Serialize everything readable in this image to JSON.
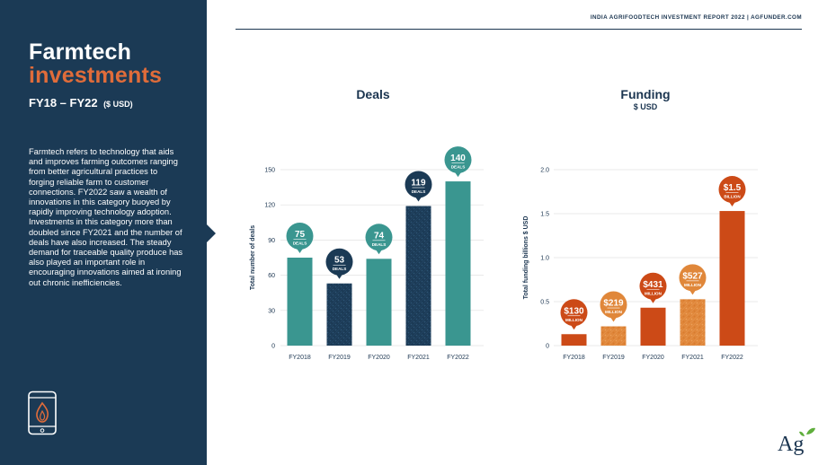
{
  "report_header": "INDIA AGRIFOODTECH INVESTMENT REPORT 2022 | AGFUNDER.COM",
  "sidebar": {
    "title_line1": "Farmtech",
    "title_line2": "investments",
    "years": "FY18 – FY22",
    "currency": "($ USD)",
    "description": "Farmtech refers to technology that aids and improves farming outcomes ranging from better agricultural practices to forging reliable farm to customer connections. FY2022 saw a wealth of innovations in this category buoyed by rapidly improving technology adoption. Investments in this category more than doubled since FY2021 and the number of deals have also increased. The steady demand for traceable quality produce has also played an important role in encouraging innovations aimed at ironing out chronic inefficiencies."
  },
  "brand": {
    "logo_text": "Ag"
  },
  "colors": {
    "navy": "#1b3a55",
    "teal": "#3a9690",
    "orange_dark": "#cc4a17",
    "orange_light": "#e0873a",
    "brand_orange": "#e06c3a",
    "leaf_green": "#5fae3c"
  },
  "chart_data": [
    {
      "type": "bar",
      "title": "Deals",
      "subtitle": "",
      "xlabel": "",
      "ylabel": "Total number of deals",
      "categories": [
        "FY2018",
        "FY2019",
        "FY2020",
        "FY2021",
        "FY2022"
      ],
      "values": [
        75,
        53,
        74,
        119,
        140
      ],
      "ylim": [
        0,
        150
      ],
      "yticks": [
        0,
        30,
        60,
        90,
        120,
        150
      ],
      "ytick_labels": [
        "0",
        "30",
        "60",
        "90",
        "120",
        "150"
      ],
      "bar_colors": [
        "#3a9690",
        "#1b3a55",
        "#3a9690",
        "#1b3a55",
        "#3a9690"
      ],
      "patterned": [
        false,
        true,
        false,
        true,
        false
      ],
      "data_labels": [
        {
          "value": "75",
          "unit": "DEALS"
        },
        {
          "value": "53",
          "unit": "DEALS"
        },
        {
          "value": "74",
          "unit": "DEALS"
        },
        {
          "value": "119",
          "unit": "DEALS"
        },
        {
          "value": "140",
          "unit": "DEALS"
        }
      ],
      "grid": true
    },
    {
      "type": "bar",
      "title": "Funding",
      "subtitle": "$ USD",
      "xlabel": "",
      "ylabel": "Total funding billions $ USD",
      "categories": [
        "FY2018",
        "FY2019",
        "FY2020",
        "FY2021",
        "FY2022"
      ],
      "values": [
        0.13,
        0.219,
        0.431,
        0.527,
        1.53
      ],
      "ylim": [
        0,
        2.0
      ],
      "yticks": [
        0,
        0.5,
        1.0,
        1.5,
        2.0
      ],
      "ytick_labels": [
        "0",
        "0.5",
        "1.0",
        "1.5",
        "2.0"
      ],
      "bar_colors": [
        "#cc4a17",
        "#e0873a",
        "#cc4a17",
        "#e0873a",
        "#cc4a17"
      ],
      "patterned": [
        false,
        true,
        false,
        true,
        false
      ],
      "data_labels": [
        {
          "value": "$130",
          "unit": "MILLION"
        },
        {
          "value": "$219",
          "unit": "MILLION"
        },
        {
          "value": "$431",
          "unit": "MILLION"
        },
        {
          "value": "$527",
          "unit": "MILLION"
        },
        {
          "value": "$1.5",
          "unit": "BILLION"
        }
      ],
      "grid": true
    }
  ]
}
